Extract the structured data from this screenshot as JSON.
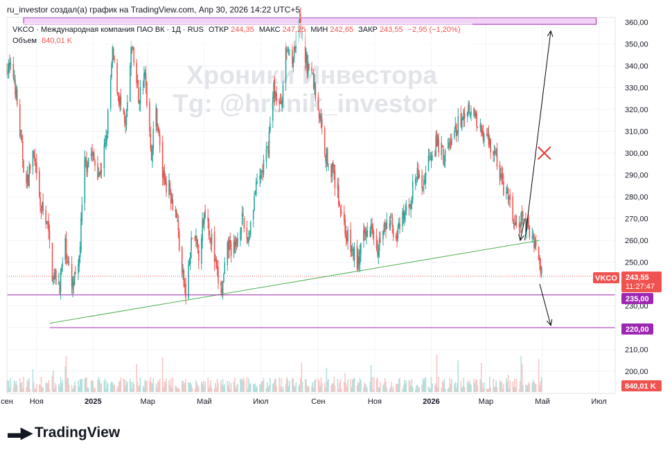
{
  "header": {
    "caption": "ru_investor создал(а) график на TradingView.com, Апр 30, 2026 14:22 UTC+5"
  },
  "legend": {
    "symbol_line": "VKCO · Международная компания ПАО ВК · 1Д · RUS",
    "open_label": "ОТКР",
    "open_value": "244,35",
    "high_label": "МАКС",
    "high_value": "247,25",
    "low_label": "МИН",
    "low_value": "242,65",
    "close_label": "ЗАКР",
    "close_value": "243,55",
    "change": "−2,95 (−1,20%)",
    "volume_label": "Объем",
    "volume_value": "840,01 K"
  },
  "watermark": {
    "line1": "Хроники Инвестора",
    "line2": "Tg: @hronik_investor"
  },
  "price_tags": {
    "symbol": "VKCO",
    "last_price": "243,55",
    "countdown": "11:27:47",
    "level_1": "235,00",
    "level_2": "220,00",
    "volume": "840,01 K"
  },
  "colors": {
    "up": "#26a69a",
    "down": "#ef5350",
    "volume_up": "#b2dfdb",
    "volume_down": "#f7c6c5",
    "trendline": "#4caf50",
    "level_line": "#9c27b0",
    "zone_fill": "#f3d2f7",
    "zone_border": "#9c27b0",
    "arrow": "#000000",
    "cross": "#e53935",
    "grid": "#f0f3fa"
  },
  "footer": {
    "brand": "TradingView",
    "logo_icon": "tradingview-logo-icon"
  },
  "chart_data": {
    "type": "candlestick",
    "ylim": [
      190,
      363
    ],
    "yticks": [
      "360,00",
      "350,00",
      "340,00",
      "330,00",
      "320,00",
      "310,00",
      "300,00",
      "290,00",
      "280,00",
      "270,00",
      "260,00",
      "250,00",
      "240,00",
      "230,00",
      "220,00",
      "210,00",
      "200,00"
    ],
    "ytick_values": [
      360,
      350,
      340,
      330,
      320,
      310,
      300,
      290,
      280,
      270,
      260,
      250,
      240,
      230,
      220,
      210,
      200
    ],
    "x_range": [
      "2024-09-30",
      "2026-07-20"
    ],
    "xticks": [
      {
        "label": "сен",
        "date": "2024-09-30"
      },
      {
        "label": "Ноя",
        "date": "2024-11-01"
      },
      {
        "label": "2025",
        "date": "2025-01-01",
        "bold": true
      },
      {
        "label": "Мар",
        "date": "2025-03-01"
      },
      {
        "label": "Май",
        "date": "2025-05-01"
      },
      {
        "label": "Июл",
        "date": "2025-07-01"
      },
      {
        "label": "Сен",
        "date": "2025-09-01"
      },
      {
        "label": "Ноя",
        "date": "2025-11-01"
      },
      {
        "label": "2026",
        "date": "2026-01-01",
        "bold": true
      },
      {
        "label": "Мар",
        "date": "2026-03-01"
      },
      {
        "label": "Май",
        "date": "2026-05-01"
      },
      {
        "label": "Июл",
        "date": "2026-07-01"
      }
    ],
    "price_path": [
      [
        "2024-09-30",
        340
      ],
      [
        "2024-10-08",
        335
      ],
      [
        "2024-10-15",
        305
      ],
      [
        "2024-10-21",
        285
      ],
      [
        "2024-10-28",
        300
      ],
      [
        "2024-11-05",
        275
      ],
      [
        "2024-11-12",
        270
      ],
      [
        "2024-11-18",
        245
      ],
      [
        "2024-11-26",
        240
      ],
      [
        "2024-12-02",
        258
      ],
      [
        "2024-12-09",
        238
      ],
      [
        "2024-12-16",
        245
      ],
      [
        "2024-12-23",
        295
      ],
      [
        "2024-12-30",
        300
      ],
      [
        "2025-01-08",
        290
      ],
      [
        "2025-01-15",
        305
      ],
      [
        "2025-01-22",
        345
      ],
      [
        "2025-01-29",
        325
      ],
      [
        "2025-02-05",
        310
      ],
      [
        "2025-02-12",
        350
      ],
      [
        "2025-02-19",
        325
      ],
      [
        "2025-02-26",
        335
      ],
      [
        "2025-03-05",
        300
      ],
      [
        "2025-03-10",
        320
      ],
      [
        "2025-03-17",
        290
      ],
      [
        "2025-03-25",
        283
      ],
      [
        "2025-04-01",
        272
      ],
      [
        "2025-04-07",
        245
      ],
      [
        "2025-04-11",
        235
      ],
      [
        "2025-04-18",
        262
      ],
      [
        "2025-04-25",
        255
      ],
      [
        "2025-05-02",
        275
      ],
      [
        "2025-05-09",
        260
      ],
      [
        "2025-05-14",
        245
      ],
      [
        "2025-05-20",
        236
      ],
      [
        "2025-05-27",
        258
      ],
      [
        "2025-06-03",
        255
      ],
      [
        "2025-06-10",
        270
      ],
      [
        "2025-06-17",
        260
      ],
      [
        "2025-06-24",
        280
      ],
      [
        "2025-07-01",
        290
      ],
      [
        "2025-07-08",
        300
      ],
      [
        "2025-07-15",
        330
      ],
      [
        "2025-07-22",
        320
      ],
      [
        "2025-07-29",
        348
      ],
      [
        "2025-08-05",
        345
      ],
      [
        "2025-08-12",
        358
      ],
      [
        "2025-08-19",
        342
      ],
      [
        "2025-08-26",
        335
      ],
      [
        "2025-09-02",
        318
      ],
      [
        "2025-09-09",
        300
      ],
      [
        "2025-09-16",
        292
      ],
      [
        "2025-09-23",
        280
      ],
      [
        "2025-09-30",
        265
      ],
      [
        "2025-10-07",
        255
      ],
      [
        "2025-10-14",
        250
      ],
      [
        "2025-10-21",
        262
      ],
      [
        "2025-10-28",
        270
      ],
      [
        "2025-11-04",
        258
      ],
      [
        "2025-11-11",
        265
      ],
      [
        "2025-11-18",
        268
      ],
      [
        "2025-11-25",
        262
      ],
      [
        "2025-12-02",
        270
      ],
      [
        "2025-12-09",
        278
      ],
      [
        "2025-12-16",
        290
      ],
      [
        "2025-12-23",
        285
      ],
      [
        "2025-12-30",
        300
      ],
      [
        "2026-01-08",
        305
      ],
      [
        "2026-01-15",
        298
      ],
      [
        "2026-01-22",
        305
      ],
      [
        "2026-01-29",
        312
      ],
      [
        "2026-02-05",
        318
      ],
      [
        "2026-02-12",
        322
      ],
      [
        "2026-02-19",
        315
      ],
      [
        "2026-02-26",
        310
      ],
      [
        "2026-03-05",
        305
      ],
      [
        "2026-03-12",
        298
      ],
      [
        "2026-03-19",
        285
      ],
      [
        "2026-03-26",
        278
      ],
      [
        "2026-04-02",
        265
      ],
      [
        "2026-04-09",
        270
      ],
      [
        "2026-04-16",
        265
      ],
      [
        "2026-04-23",
        260
      ],
      [
        "2026-04-30",
        243.55
      ]
    ],
    "trendline": {
      "from": [
        "2024-11-15",
        222
      ],
      "to": [
        "2026-04-28",
        260
      ]
    },
    "levels": [
      235,
      220
    ],
    "resistance_zone": {
      "from": "2024-10-18",
      "to": "2026-06-28",
      "price_low": 359,
      "price_high": 362
    },
    "arrows": [
      {
        "from": [
          "2026-04-12",
          260
        ],
        "to": [
          "2026-05-10",
          356
        ]
      },
      {
        "from": [
          "2026-04-28",
          240
        ],
        "to": [
          "2026-05-10",
          221
        ]
      },
      {
        "from": [
          "2026-04-12",
          270
        ],
        "to": [
          "2026-04-07",
          260
        ]
      }
    ],
    "cross_marker": [
      "2026-05-03",
      300
    ],
    "last_price_line": 243.55
  }
}
